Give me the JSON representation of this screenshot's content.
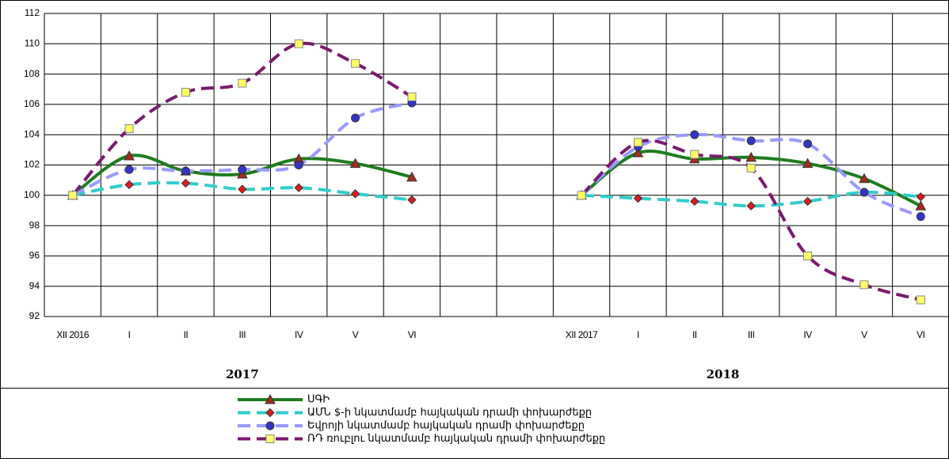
{
  "chart_data": {
    "type": "line",
    "categories": [
      "XII 2016",
      "I",
      "II",
      "III",
      "IV",
      "V",
      "VI",
      null,
      null,
      "XII 2017",
      "I",
      "II",
      "III",
      "IV",
      "V",
      "VI"
    ],
    "group_labels": [
      "2017",
      "2018"
    ],
    "ylim": [
      92,
      112
    ],
    "yticks": [
      92,
      94,
      96,
      98,
      100,
      102,
      104,
      106,
      108,
      110,
      112
    ],
    "grid": true,
    "series": [
      {
        "name": "ՍԳԻ",
        "color": "#1e7d1e",
        "marker": "triangle",
        "marker_color": "#a52a1e",
        "dashed": false,
        "values": [
          100,
          102.6,
          101.6,
          101.4,
          102.4,
          102.1,
          101.2,
          null,
          null,
          100,
          102.8,
          102.4,
          102.5,
          102.1,
          101.1,
          99.3
        ]
      },
      {
        "name": "ԱՄՆ $-ի նկատմամբ հայկական դրամի փոխարժեքը",
        "color": "#33cccc",
        "marker": "diamond",
        "marker_color": "#e8171b",
        "dashed": true,
        "values": [
          100,
          100.7,
          100.8,
          100.4,
          100.5,
          100.1,
          99.7,
          null,
          null,
          100,
          99.8,
          99.6,
          99.3,
          99.6,
          100.2,
          99.9
        ]
      },
      {
        "name": "Եվրոյի նկատմամբ հայկական դրամի փոխարժեքը",
        "color": "#9999ff",
        "marker": "circle",
        "marker_color": "#3333cc",
        "dashed": true,
        "values": [
          100,
          101.7,
          101.6,
          101.7,
          102.0,
          105.1,
          106.1,
          null,
          null,
          100,
          103.2,
          104.0,
          103.6,
          103.4,
          100.2,
          98.6
        ]
      },
      {
        "name": "ՌԴ ռուբլու նկատմամբ հայկական դրամի  փոխարժեքը",
        "color": "#7a1a6e",
        "marker": "square",
        "marker_color": "#ffff66",
        "dashed": true,
        "values": [
          100,
          104.4,
          106.8,
          107.4,
          110.0,
          108.7,
          106.5,
          null,
          null,
          100,
          103.5,
          102.7,
          101.8,
          96.0,
          94.1,
          93.1
        ]
      }
    ]
  }
}
